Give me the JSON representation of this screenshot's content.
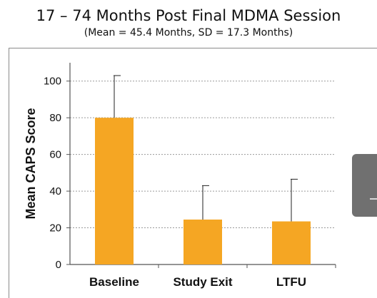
{
  "colors": {
    "bar_fill": "#F5A623",
    "grid": "#9a9a9a",
    "axis": "#555555",
    "side_tab": "#707070"
  },
  "side_tab_icon": "chevron-icon",
  "chart_data": {
    "type": "bar",
    "title": "17 – 74 Months Post Final MDMA Session",
    "subtitle": "(Mean = 45.4 Months, SD = 17.3 Months)",
    "xlabel": "",
    "ylabel": "Mean CAPS Score",
    "categories": [
      "Baseline",
      "Study Exit",
      "LTFU"
    ],
    "values": [
      80,
      24.5,
      23.5
    ],
    "error_upper": [
      103,
      43,
      46.5
    ],
    "ylim": [
      0,
      110
    ],
    "yticks": [
      0,
      20,
      40,
      60,
      80,
      100
    ],
    "grid": "dotted horizontal",
    "legend": "none"
  }
}
